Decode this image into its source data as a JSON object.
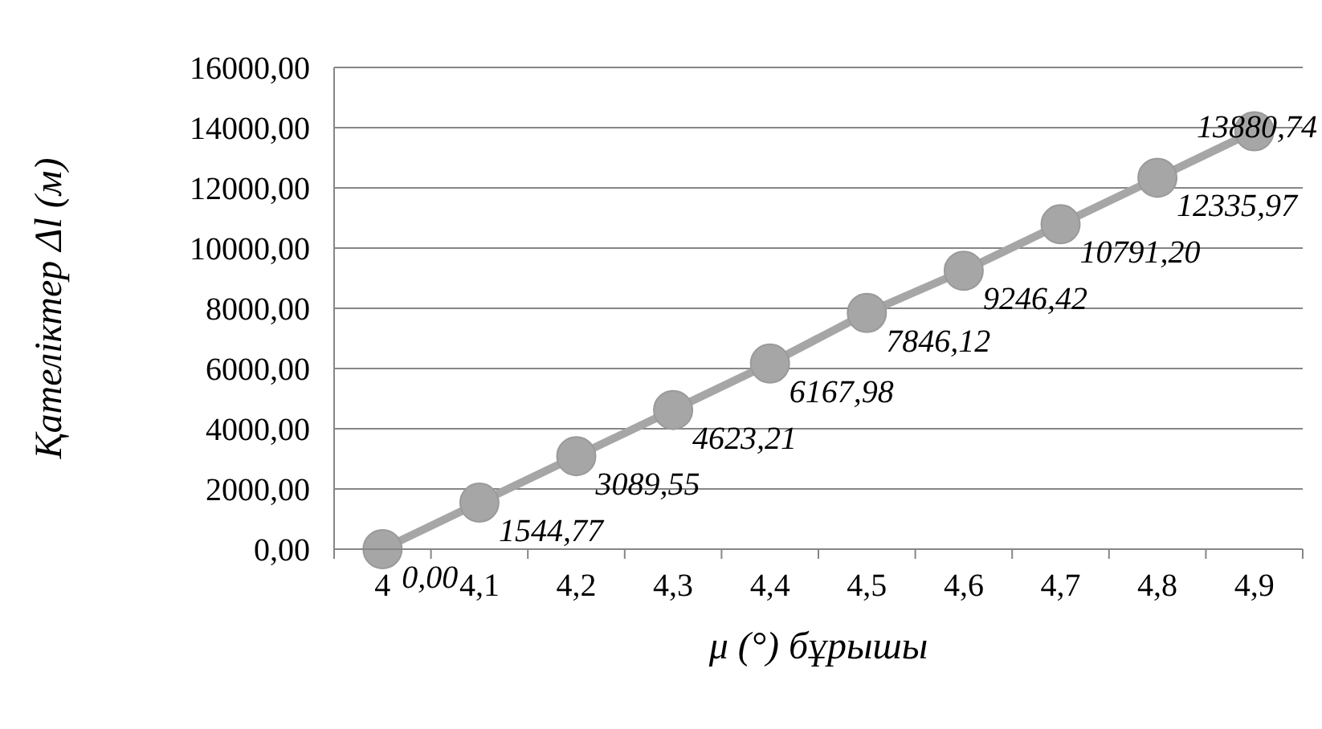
{
  "chart_data": {
    "type": "line",
    "xlabel": "μ (°) бұрышы",
    "ylabel": "Қателіктер Δl (м)",
    "categories": [
      "4",
      "4,1",
      "4,2",
      "4,3",
      "4,4",
      "4,5",
      "4,6",
      "4,7",
      "4,8",
      "4,9"
    ],
    "values": [
      0,
      1544.77,
      3089.55,
      4623.21,
      6167.98,
      7846.12,
      9246.42,
      10791.2,
      12335.97,
      13880.74
    ],
    "value_labels": [
      "0,00",
      "1544,77",
      "3089,55",
      "4623,21",
      "6167,98",
      "7846,12",
      "9246,42",
      "10791,20",
      "12335,97",
      "13880,74"
    ],
    "color": "#a6a6a6",
    "marker": "circle",
    "grid": "y",
    "ylim": [
      0,
      16000
    ],
    "yticks": [
      {
        "value": 0,
        "label": "0,00"
      },
      {
        "value": 2000,
        "label": "2000,00"
      },
      {
        "value": 4000,
        "label": "4000,00"
      },
      {
        "value": 6000,
        "label": "6000,00"
      },
      {
        "value": 8000,
        "label": "8000,00"
      },
      {
        "value": 10000,
        "label": "10000,00"
      },
      {
        "value": 12000,
        "label": "12000,00"
      },
      {
        "value": 14000,
        "label": "14000,00"
      },
      {
        "value": 16000,
        "label": "16000,00"
      }
    ]
  }
}
